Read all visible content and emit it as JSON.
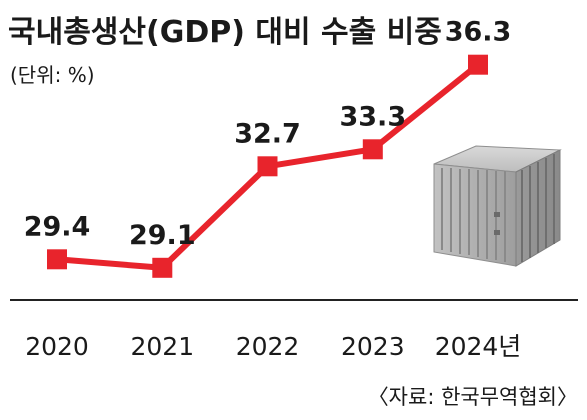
{
  "chart_data": {
    "type": "line",
    "title": "국내총생산(GDP) 대비 수출 비중",
    "subtitle": "(단위: %)",
    "categories": [
      "2020",
      "2021",
      "2022",
      "2023",
      "2024년"
    ],
    "series": [
      {
        "values": [
          29.4,
          29.1,
          32.7,
          33.3,
          36.3
        ]
      }
    ],
    "data_labels": [
      "29.4",
      "29.1",
      "32.7",
      "33.3",
      "36.3"
    ],
    "source": "〈자료: 한국무역협회〉",
    "grid": false,
    "legend": "none",
    "colors": {
      "line": "#e8242c",
      "marker": "#e8242c",
      "axis": "#222222",
      "text": "#1a1a1a"
    },
    "illustration": "shipping-container-icon"
  }
}
